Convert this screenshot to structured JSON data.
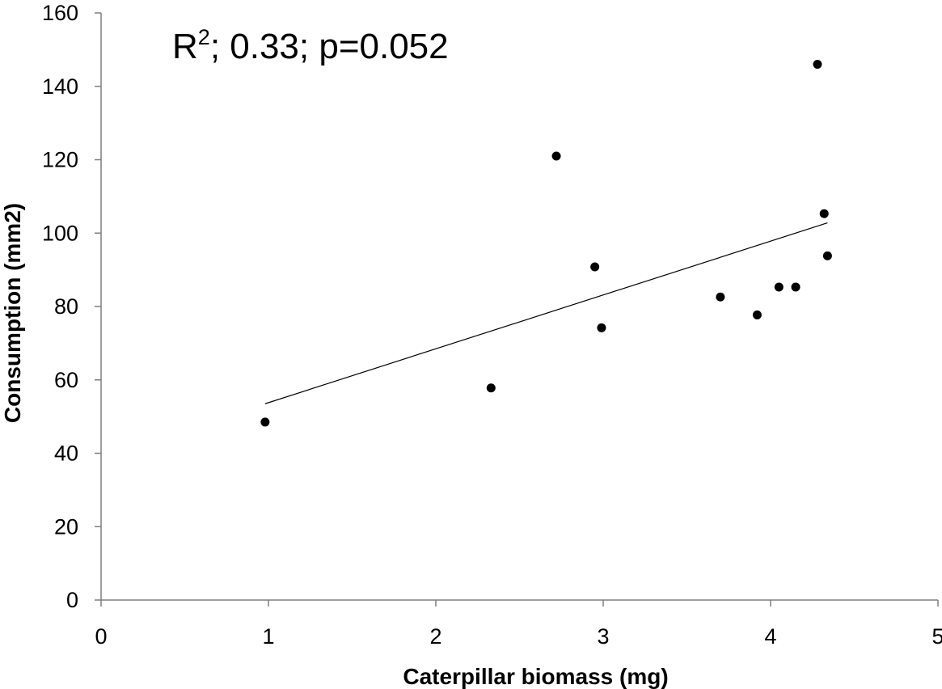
{
  "chart_data": {
    "type": "scatter",
    "title": "",
    "annotation": {
      "prefix": "R",
      "superscript": "2",
      "rest": "; 0.33; p=0.052"
    },
    "xlabel": "Caterpillar biomass (mg)",
    "ylabel": "Consumption (mm2)",
    "xlim": [
      0,
      5
    ],
    "ylim": [
      0,
      160
    ],
    "xticks": [
      "0",
      "1",
      "2",
      "3",
      "4",
      "5"
    ],
    "yticks": [
      "0",
      "20",
      "40",
      "60",
      "80",
      "100",
      "120",
      "140",
      "160"
    ],
    "grid": false,
    "legend": "none",
    "series": [
      {
        "points": [
          {
            "x": 0.98,
            "y": 48.5
          },
          {
            "x": 2.33,
            "y": 57.8
          },
          {
            "x": 2.72,
            "y": 121
          },
          {
            "x": 2.95,
            "y": 90.8
          },
          {
            "x": 2.99,
            "y": 74.2
          },
          {
            "x": 3.7,
            "y": 82.6
          },
          {
            "x": 3.92,
            "y": 77.7
          },
          {
            "x": 4.05,
            "y": 85.3
          },
          {
            "x": 4.15,
            "y": 85.3
          },
          {
            "x": 4.28,
            "y": 146
          },
          {
            "x": 4.32,
            "y": 105.3
          },
          {
            "x": 4.34,
            "y": 93.8
          }
        ],
        "color": "#000000"
      }
    ],
    "trendline": {
      "type": "linear",
      "start": {
        "x": 0.98,
        "y": 53.5
      },
      "end": {
        "x": 4.34,
        "y": 102.8
      },
      "color": "#000000"
    }
  }
}
